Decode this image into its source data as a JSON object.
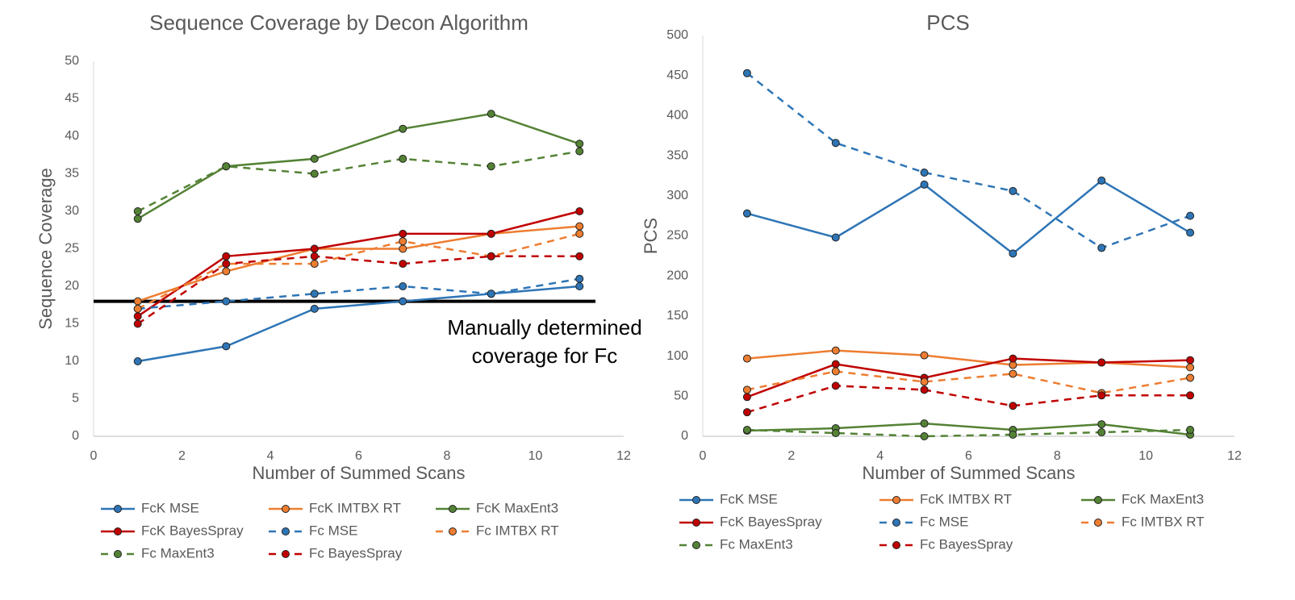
{
  "chart_data": [
    {
      "type": "line",
      "title": "Sequence Coverage by Decon Algorithm",
      "x_label": "Number of Summed Scans",
      "y_label": "Sequence Coverage",
      "x": [
        1,
        3,
        5,
        7,
        9,
        11
      ],
      "xlim": [
        0,
        12
      ],
      "xticks": [
        0,
        2,
        4,
        6,
        8,
        10,
        12
      ],
      "ylim": [
        0,
        50
      ],
      "yticks": [
        0,
        5,
        10,
        15,
        20,
        25,
        30,
        35,
        40,
        45,
        50
      ],
      "grid": false,
      "reference_line": 18,
      "annotation": [
        "Manually determined",
        "coverage for Fc"
      ],
      "series": [
        {
          "name": "FcK MSE",
          "color": "#2e75b6",
          "dashed": false,
          "values": [
            10,
            12,
            17,
            18,
            19,
            20
          ]
        },
        {
          "name": "FcK IMTBX RT",
          "color": "#ed7d31",
          "dashed": false,
          "values": [
            18,
            22,
            25,
            25,
            27,
            28
          ]
        },
        {
          "name": "FcK MaxEnt3",
          "color": "#548235",
          "dashed": false,
          "values": [
            29,
            36,
            37,
            41,
            43,
            39
          ]
        },
        {
          "name": "FcK BayesSpray",
          "color": "#c00000",
          "dashed": false,
          "values": [
            16,
            24,
            25,
            27,
            27,
            30
          ]
        },
        {
          "name": "Fc MSE",
          "color": "#2e75b6",
          "dashed": true,
          "values": [
            17,
            18,
            19,
            20,
            19,
            21
          ]
        },
        {
          "name": "Fc IMTBX RT",
          "color": "#ed7d31",
          "dashed": true,
          "values": [
            17,
            23,
            23,
            26,
            24,
            27
          ]
        },
        {
          "name": "Fc MaxEnt3",
          "color": "#548235",
          "dashed": true,
          "values": [
            30,
            36,
            35,
            37,
            36,
            38
          ]
        },
        {
          "name": "Fc BayesSpray",
          "color": "#c00000",
          "dashed": true,
          "values": [
            15,
            23,
            24,
            23,
            24,
            24
          ]
        }
      ]
    },
    {
      "type": "line",
      "title": "PCS",
      "x_label": "Number of Summed Scans",
      "y_label": "PCS",
      "x": [
        1,
        3,
        5,
        7,
        9,
        11
      ],
      "xlim": [
        0,
        12
      ],
      "xticks": [
        0,
        2,
        4,
        6,
        8,
        10,
        12
      ],
      "ylim": [
        0,
        500
      ],
      "yticks": [
        0,
        50,
        100,
        150,
        200,
        250,
        300,
        350,
        400,
        450,
        500
      ],
      "grid": false,
      "series": [
        {
          "name": "FcK MSE",
          "color": "#2e75b6",
          "dashed": false,
          "values": [
            278,
            248,
            314,
            228,
            319,
            254
          ]
        },
        {
          "name": "FcK IMTBX RT",
          "color": "#ed7d31",
          "dashed": false,
          "values": [
            97,
            107,
            101,
            89,
            92,
            86
          ]
        },
        {
          "name": "FcK MaxEnt3",
          "color": "#548235",
          "dashed": false,
          "values": [
            7,
            10,
            16,
            8,
            15,
            2
          ]
        },
        {
          "name": "FcK BayesSpray",
          "color": "#c00000",
          "dashed": false,
          "values": [
            49,
            90,
            73,
            97,
            92,
            95
          ]
        },
        {
          "name": "Fc MSE",
          "color": "#2e75b6",
          "dashed": true,
          "values": [
            453,
            366,
            329,
            306,
            235,
            275
          ]
        },
        {
          "name": "Fc IMTBX RT",
          "color": "#ed7d31",
          "dashed": true,
          "values": [
            58,
            81,
            68,
            78,
            54,
            73
          ]
        },
        {
          "name": "Fc MaxEnt3",
          "color": "#548235",
          "dashed": true,
          "values": [
            8,
            4,
            0,
            2,
            5,
            8
          ]
        },
        {
          "name": "Fc BayesSpray",
          "color": "#c00000",
          "dashed": true,
          "values": [
            30,
            63,
            58,
            38,
            51,
            51
          ]
        }
      ]
    }
  ]
}
